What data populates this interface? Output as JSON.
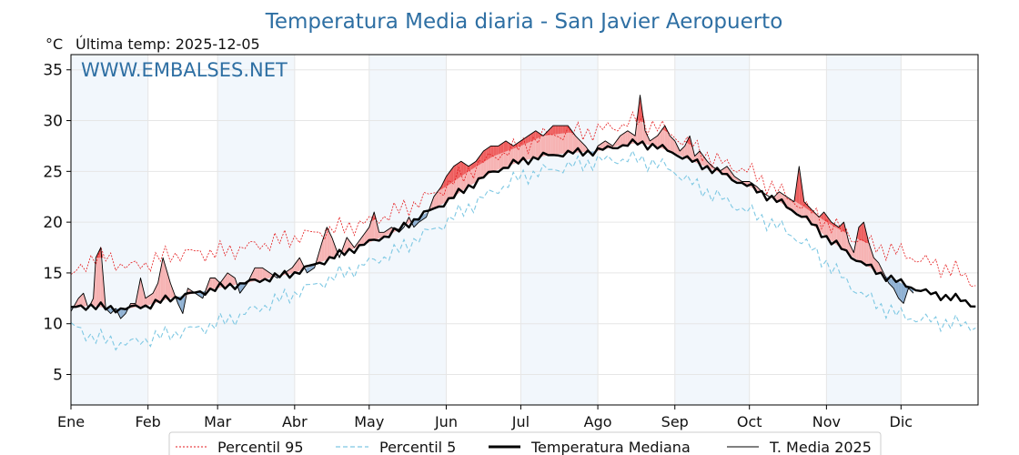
{
  "chart_data": {
    "type": "line",
    "title": "Temperatura Media diaria - San Javier Aeropuerto",
    "subtitle": "Última temp: 2025-12-05",
    "y_unit": "°C",
    "watermark": "WWW.EMBALSES.NET",
    "ylim": [
      2,
      36.5
    ],
    "yticks": [
      5,
      10,
      15,
      20,
      25,
      30,
      35
    ],
    "month_labels": [
      "Ene",
      "Feb",
      "Mar",
      "Abr",
      "May",
      "Jun",
      "Jul",
      "Ago",
      "Sep",
      "Oct",
      "Nov",
      "Dic"
    ],
    "month_start_day": [
      0,
      31,
      59,
      90,
      120,
      151,
      181,
      212,
      243,
      273,
      304,
      334
    ],
    "days_in_year": 365,
    "grid": true,
    "alternating_month_shading": true,
    "legend_position": "bottom",
    "series": [
      {
        "name": "Percentil 95",
        "style": "dotted",
        "color": "#e41a1c",
        "points": [
          [
            0,
            14.5
          ],
          [
            8,
            16.5
          ],
          [
            15,
            16.5
          ],
          [
            23,
            15.5
          ],
          [
            31,
            16.0
          ],
          [
            40,
            16.8
          ],
          [
            50,
            17.0
          ],
          [
            59,
            17.0
          ],
          [
            70,
            17.5
          ],
          [
            80,
            18.0
          ],
          [
            90,
            18.5
          ],
          [
            100,
            19.0
          ],
          [
            110,
            19.5
          ],
          [
            120,
            20.0
          ],
          [
            130,
            21.0
          ],
          [
            140,
            22.0
          ],
          [
            151,
            23.5
          ],
          [
            160,
            25.0
          ],
          [
            170,
            26.5
          ],
          [
            181,
            27.5
          ],
          [
            190,
            28.5
          ],
          [
            200,
            28.8
          ],
          [
            212,
            29.0
          ],
          [
            220,
            29.5
          ],
          [
            228,
            30.0
          ],
          [
            235,
            29.5
          ],
          [
            243,
            28.5
          ],
          [
            250,
            27.5
          ],
          [
            260,
            26.0
          ],
          [
            273,
            25.0
          ],
          [
            285,
            23.0
          ],
          [
            295,
            21.5
          ],
          [
            304,
            20.0
          ],
          [
            315,
            18.5
          ],
          [
            325,
            17.5
          ],
          [
            334,
            17.0
          ],
          [
            345,
            16.0
          ],
          [
            356,
            15.2
          ],
          [
            364,
            14.0
          ]
        ]
      },
      {
        "name": "Percentil 5",
        "style": "dashed",
        "color": "#7ec8e3",
        "points": [
          [
            0,
            9.8
          ],
          [
            8,
            8.8
          ],
          [
            15,
            8.3
          ],
          [
            23,
            8.0
          ],
          [
            31,
            8.5
          ],
          [
            40,
            9.0
          ],
          [
            50,
            9.5
          ],
          [
            59,
            10.0
          ],
          [
            70,
            11.0
          ],
          [
            80,
            12.0
          ],
          [
            90,
            13.0
          ],
          [
            100,
            14.0
          ],
          [
            110,
            15.0
          ],
          [
            120,
            16.0
          ],
          [
            130,
            17.0
          ],
          [
            140,
            18.5
          ],
          [
            151,
            20.0
          ],
          [
            160,
            21.5
          ],
          [
            170,
            23.0
          ],
          [
            181,
            24.5
          ],
          [
            190,
            25.0
          ],
          [
            200,
            25.5
          ],
          [
            212,
            26.0
          ],
          [
            220,
            26.2
          ],
          [
            228,
            26.2
          ],
          [
            235,
            25.8
          ],
          [
            243,
            25.0
          ],
          [
            250,
            23.8
          ],
          [
            260,
            22.5
          ],
          [
            273,
            21.0
          ],
          [
            285,
            19.5
          ],
          [
            295,
            18.0
          ],
          [
            304,
            16.0
          ],
          [
            315,
            13.5
          ],
          [
            325,
            11.8
          ],
          [
            334,
            10.8
          ],
          [
            345,
            10.3
          ],
          [
            356,
            10.0
          ],
          [
            364,
            9.8
          ]
        ]
      },
      {
        "name": "Temperatura Mediana",
        "style": "solid-thick",
        "color": "#000000",
        "points": [
          [
            0,
            11.5
          ],
          [
            8,
            11.8
          ],
          [
            15,
            11.5
          ],
          [
            23,
            11.5
          ],
          [
            31,
            11.8
          ],
          [
            40,
            12.5
          ],
          [
            50,
            13.0
          ],
          [
            59,
            13.5
          ],
          [
            70,
            14.0
          ],
          [
            80,
            14.5
          ],
          [
            90,
            15.0
          ],
          [
            100,
            16.0
          ],
          [
            110,
            17.0
          ],
          [
            120,
            18.0
          ],
          [
            130,
            19.0
          ],
          [
            140,
            20.5
          ],
          [
            151,
            22.0
          ],
          [
            160,
            23.5
          ],
          [
            170,
            25.0
          ],
          [
            181,
            26.0
          ],
          [
            190,
            26.5
          ],
          [
            200,
            26.8
          ],
          [
            212,
            27.0
          ],
          [
            220,
            27.5
          ],
          [
            228,
            27.8
          ],
          [
            235,
            27.5
          ],
          [
            243,
            26.8
          ],
          [
            250,
            26.0
          ],
          [
            260,
            25.0
          ],
          [
            273,
            23.5
          ],
          [
            285,
            22.0
          ],
          [
            295,
            20.5
          ],
          [
            304,
            18.5
          ],
          [
            315,
            16.5
          ],
          [
            325,
            15.0
          ],
          [
            334,
            14.0
          ],
          [
            345,
            13.0
          ],
          [
            356,
            12.5
          ],
          [
            364,
            11.8
          ]
        ]
      },
      {
        "name": "T. Media 2025",
        "style": "solid-thin",
        "color": "#000000",
        "points": [
          [
            0,
            11.2
          ],
          [
            3,
            12.5
          ],
          [
            5,
            13.0
          ],
          [
            7,
            11.5
          ],
          [
            9,
            12.5
          ],
          [
            10,
            16.5
          ],
          [
            12,
            17.5
          ],
          [
            14,
            11.5
          ],
          [
            16,
            11.0
          ],
          [
            18,
            11.5
          ],
          [
            20,
            10.5
          ],
          [
            22,
            11.0
          ],
          [
            24,
            12.0
          ],
          [
            26,
            12.0
          ],
          [
            28,
            14.5
          ],
          [
            30,
            12.5
          ],
          [
            33,
            13.0
          ],
          [
            35,
            14.0
          ],
          [
            37,
            16.5
          ],
          [
            40,
            14.0
          ],
          [
            43,
            12.0
          ],
          [
            45,
            11.0
          ],
          [
            47,
            13.5
          ],
          [
            50,
            13.0
          ],
          [
            53,
            12.5
          ],
          [
            56,
            14.5
          ],
          [
            58,
            14.5
          ],
          [
            60,
            14.0
          ],
          [
            63,
            15.0
          ],
          [
            66,
            14.5
          ],
          [
            68,
            13.0
          ],
          [
            71,
            14.0
          ],
          [
            74,
            15.5
          ],
          [
            77,
            15.5
          ],
          [
            80,
            15.0
          ],
          [
            83,
            14.5
          ],
          [
            86,
            15.0
          ],
          [
            89,
            15.5
          ],
          [
            92,
            16.5
          ],
          [
            95,
            15.0
          ],
          [
            98,
            15.5
          ],
          [
            101,
            18.0
          ],
          [
            103,
            19.5
          ],
          [
            105,
            18.5
          ],
          [
            108,
            16.5
          ],
          [
            111,
            18.5
          ],
          [
            114,
            17.5
          ],
          [
            117,
            18.5
          ],
          [
            120,
            19.5
          ],
          [
            122,
            21.0
          ],
          [
            124,
            19.0
          ],
          [
            126,
            19.0
          ],
          [
            129,
            19.5
          ],
          [
            132,
            19.0
          ],
          [
            134,
            19.5
          ],
          [
            136,
            20.5
          ],
          [
            138,
            19.5
          ],
          [
            140,
            20.0
          ],
          [
            143,
            20.5
          ],
          [
            146,
            22.5
          ],
          [
            149,
            23.5
          ],
          [
            151,
            24.5
          ],
          [
            154,
            25.5
          ],
          [
            157,
            26.0
          ],
          [
            160,
            25.5
          ],
          [
            163,
            26.0
          ],
          [
            166,
            27.0
          ],
          [
            169,
            27.5
          ],
          [
            172,
            27.5
          ],
          [
            175,
            28.0
          ],
          [
            178,
            27.5
          ],
          [
            181,
            28.0
          ],
          [
            184,
            28.5
          ],
          [
            187,
            29.0
          ],
          [
            190,
            28.5
          ],
          [
            194,
            29.5
          ],
          [
            200,
            29.5
          ],
          [
            203,
            28.5
          ],
          [
            207,
            27.5
          ],
          [
            210,
            26.5
          ],
          [
            212,
            27.5
          ],
          [
            215,
            28.0
          ],
          [
            218,
            27.5
          ],
          [
            221,
            28.5
          ],
          [
            224,
            29.0
          ],
          [
            227,
            28.5
          ],
          [
            229,
            32.5
          ],
          [
            231,
            29.0
          ],
          [
            233,
            28.0
          ],
          [
            236,
            28.5
          ],
          [
            239,
            29.5
          ],
          [
            241,
            28.5
          ],
          [
            243,
            28.0
          ],
          [
            245,
            27.0
          ],
          [
            247,
            27.5
          ],
          [
            249,
            28.5
          ],
          [
            251,
            26.5
          ],
          [
            253,
            27.0
          ],
          [
            256,
            26.0
          ],
          [
            258,
            25.5
          ],
          [
            261,
            25.0
          ],
          [
            264,
            25.5
          ],
          [
            267,
            24.5
          ],
          [
            270,
            24.0
          ],
          [
            273,
            24.0
          ],
          [
            276,
            23.5
          ],
          [
            278,
            23.0
          ],
          [
            281,
            22.5
          ],
          [
            283,
            22.5
          ],
          [
            285,
            23.0
          ],
          [
            288,
            22.5
          ],
          [
            291,
            22.0
          ],
          [
            293,
            25.5
          ],
          [
            295,
            22.0
          ],
          [
            297,
            21.5
          ],
          [
            299,
            21.0
          ],
          [
            301,
            20.5
          ],
          [
            303,
            21.0
          ],
          [
            306,
            20.0
          ],
          [
            309,
            19.5
          ],
          [
            311,
            20.0
          ],
          [
            313,
            18.0
          ],
          [
            315,
            17.0
          ],
          [
            317,
            19.5
          ],
          [
            319,
            20.0
          ],
          [
            321,
            18.0
          ],
          [
            323,
            16.5
          ],
          [
            325,
            16.0
          ],
          [
            327,
            15.0
          ],
          [
            329,
            14.0
          ],
          [
            331,
            13.5
          ],
          [
            333,
            12.5
          ],
          [
            335,
            12.0
          ],
          [
            337,
            13.5
          ],
          [
            339,
            13.0
          ]
        ]
      }
    ]
  }
}
